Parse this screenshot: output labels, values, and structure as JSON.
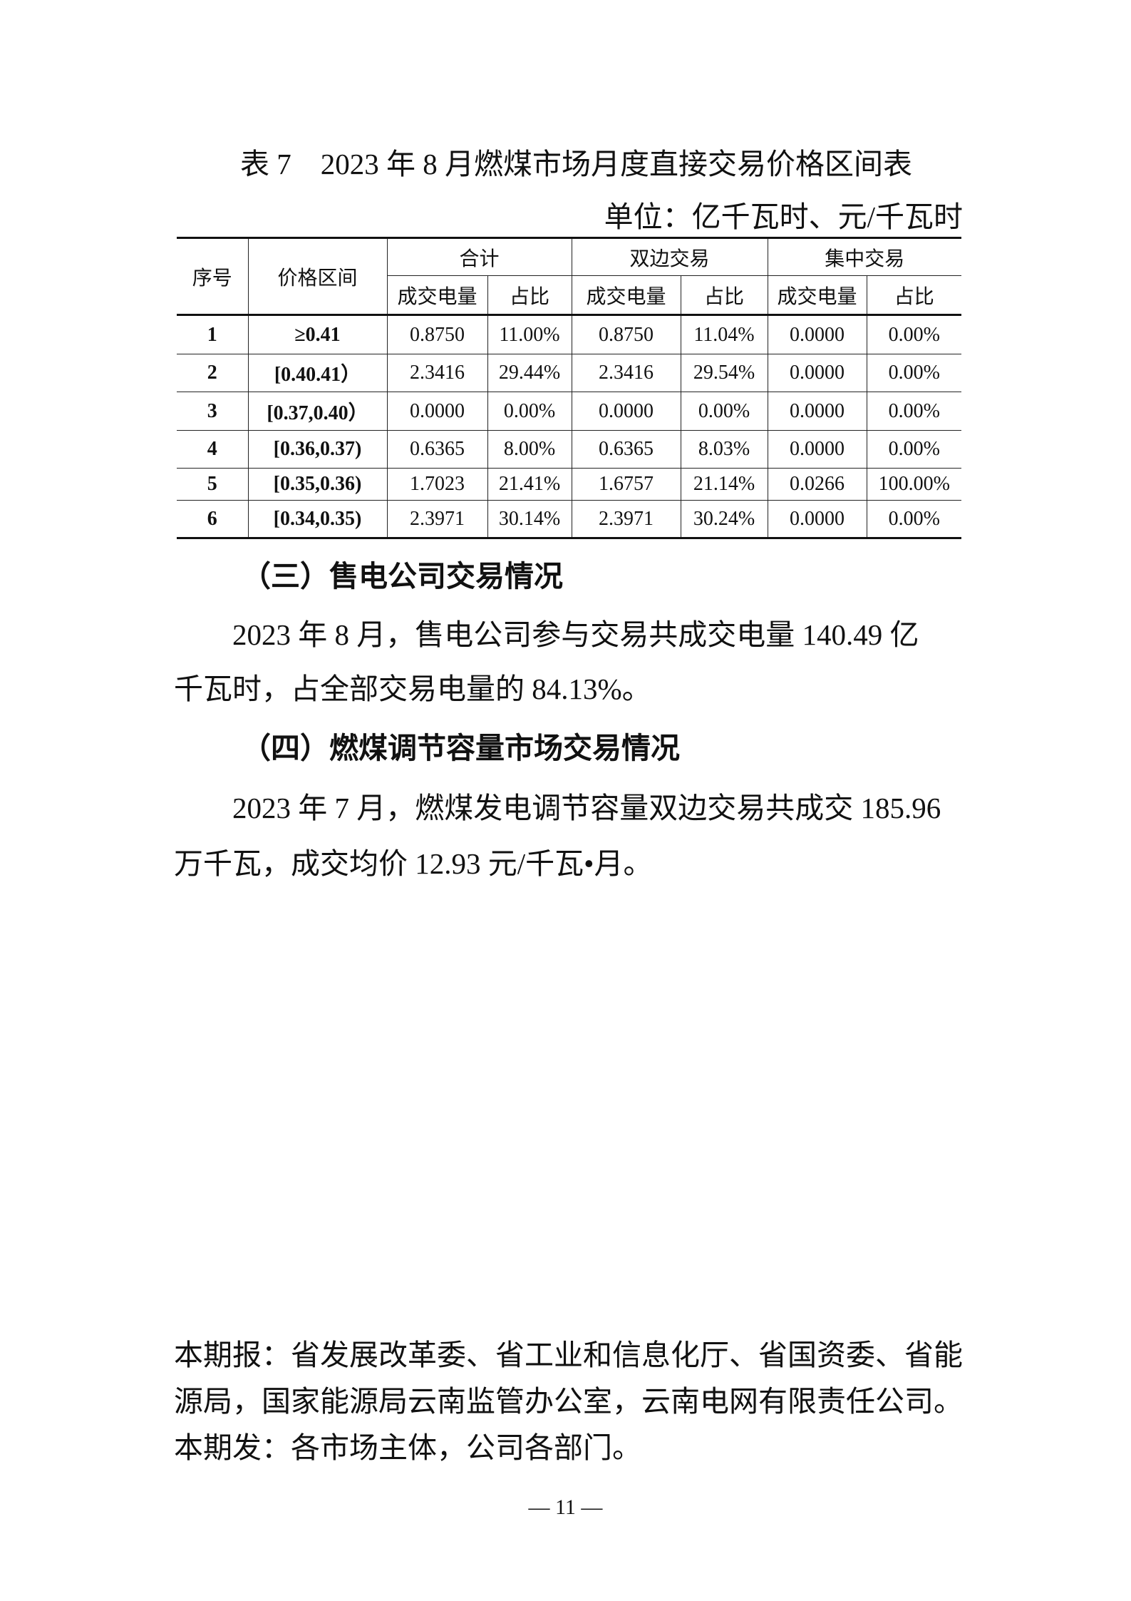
{
  "title": "表 7　2023 年 8 月燃煤市场月度直接交易价格区间表",
  "unit": "单位：亿千瓦时、元/千瓦时",
  "table": {
    "headers": {
      "seq": "序号",
      "range": "价格区间",
      "total": "合计",
      "bilateral": "双边交易",
      "centralized": "集中交易",
      "volume": "成交电量",
      "share": "占比"
    },
    "rows": [
      [
        "1",
        "≥0.41",
        "0.8750",
        "11.00%",
        "0.8750",
        "11.04%",
        "0.0000",
        "0.00%"
      ],
      [
        "2",
        "[0.40.41）",
        "2.3416",
        "29.44%",
        "2.3416",
        "29.54%",
        "0.0000",
        "0.00%"
      ],
      [
        "3",
        "[0.37,0.40）",
        "0.0000",
        "0.00%",
        "0.0000",
        "0.00%",
        "0.0000",
        "0.00%"
      ],
      [
        "4",
        "[0.36,0.37)",
        "0.6365",
        "8.00%",
        "0.6365",
        "8.03%",
        "0.0000",
        "0.00%"
      ],
      [
        "5",
        "[0.35,0.36)",
        "1.7023",
        "21.41%",
        "1.6757",
        "21.14%",
        "0.0266",
        "100.00%"
      ],
      [
        "6",
        "[0.34,0.35)",
        "2.3971",
        "30.14%",
        "2.3971",
        "30.24%",
        "0.0000",
        "0.00%"
      ]
    ]
  },
  "section3": {
    "heading": "（三）售电公司交易情况",
    "line1": "2023 年 8 月，售电公司参与交易共成交电量 140.49 亿",
    "line2": "千瓦时，占全部交易电量的 84.13%。"
  },
  "section4": {
    "heading": "（四）燃煤调节容量市场交易情况",
    "line1": "2023 年 7 月，燃煤发电调节容量双边交易共成交 185.96",
    "line2": "万千瓦，成交均价 12.93 元/千瓦•月。"
  },
  "footer": {
    "line1": "本期报：省发展改革委、省工业和信息化厅、省国资委、省能",
    "line2": "源局，国家能源局云南监管办公室，云南电网有限责任公司。",
    "line3": "本期发：各市场主体，公司各部门。"
  },
  "page_number": "— 11 —"
}
